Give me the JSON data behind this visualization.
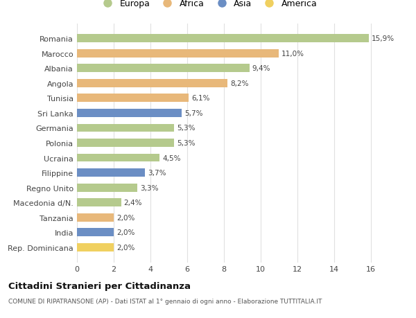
{
  "countries": [
    "Romania",
    "Marocco",
    "Albania",
    "Angola",
    "Tunisia",
    "Sri Lanka",
    "Germania",
    "Polonia",
    "Ucraina",
    "Filippine",
    "Regno Unito",
    "Macedonia d/N.",
    "Tanzania",
    "India",
    "Rep. Dominicana"
  ],
  "values": [
    15.9,
    11.0,
    9.4,
    8.2,
    6.1,
    5.7,
    5.3,
    5.3,
    4.5,
    3.7,
    3.3,
    2.4,
    2.0,
    2.0,
    2.0
  ],
  "labels": [
    "15,9%",
    "11,0%",
    "9,4%",
    "8,2%",
    "6,1%",
    "5,7%",
    "5,3%",
    "5,3%",
    "4,5%",
    "3,7%",
    "3,3%",
    "2,4%",
    "2,0%",
    "2,0%",
    "2,0%"
  ],
  "continents": [
    "Europa",
    "Africa",
    "Europa",
    "Africa",
    "Africa",
    "Asia",
    "Europa",
    "Europa",
    "Europa",
    "Asia",
    "Europa",
    "Europa",
    "Africa",
    "Asia",
    "America"
  ],
  "colors": {
    "Europa": "#b5ca8d",
    "Africa": "#e8b87a",
    "Asia": "#6b8ec4",
    "America": "#f0d060"
  },
  "title": "Cittadini Stranieri per Cittadinanza",
  "subtitle": "COMUNE DI RIPATRANSONE (AP) - Dati ISTAT al 1° gennaio di ogni anno - Elaborazione TUTTITALIA.IT",
  "xlim": [
    0,
    17
  ],
  "xticks": [
    0,
    2,
    4,
    6,
    8,
    10,
    12,
    14,
    16
  ],
  "bg_color": "#ffffff",
  "grid_color": "#e0e0e0",
  "bar_height": 0.55
}
